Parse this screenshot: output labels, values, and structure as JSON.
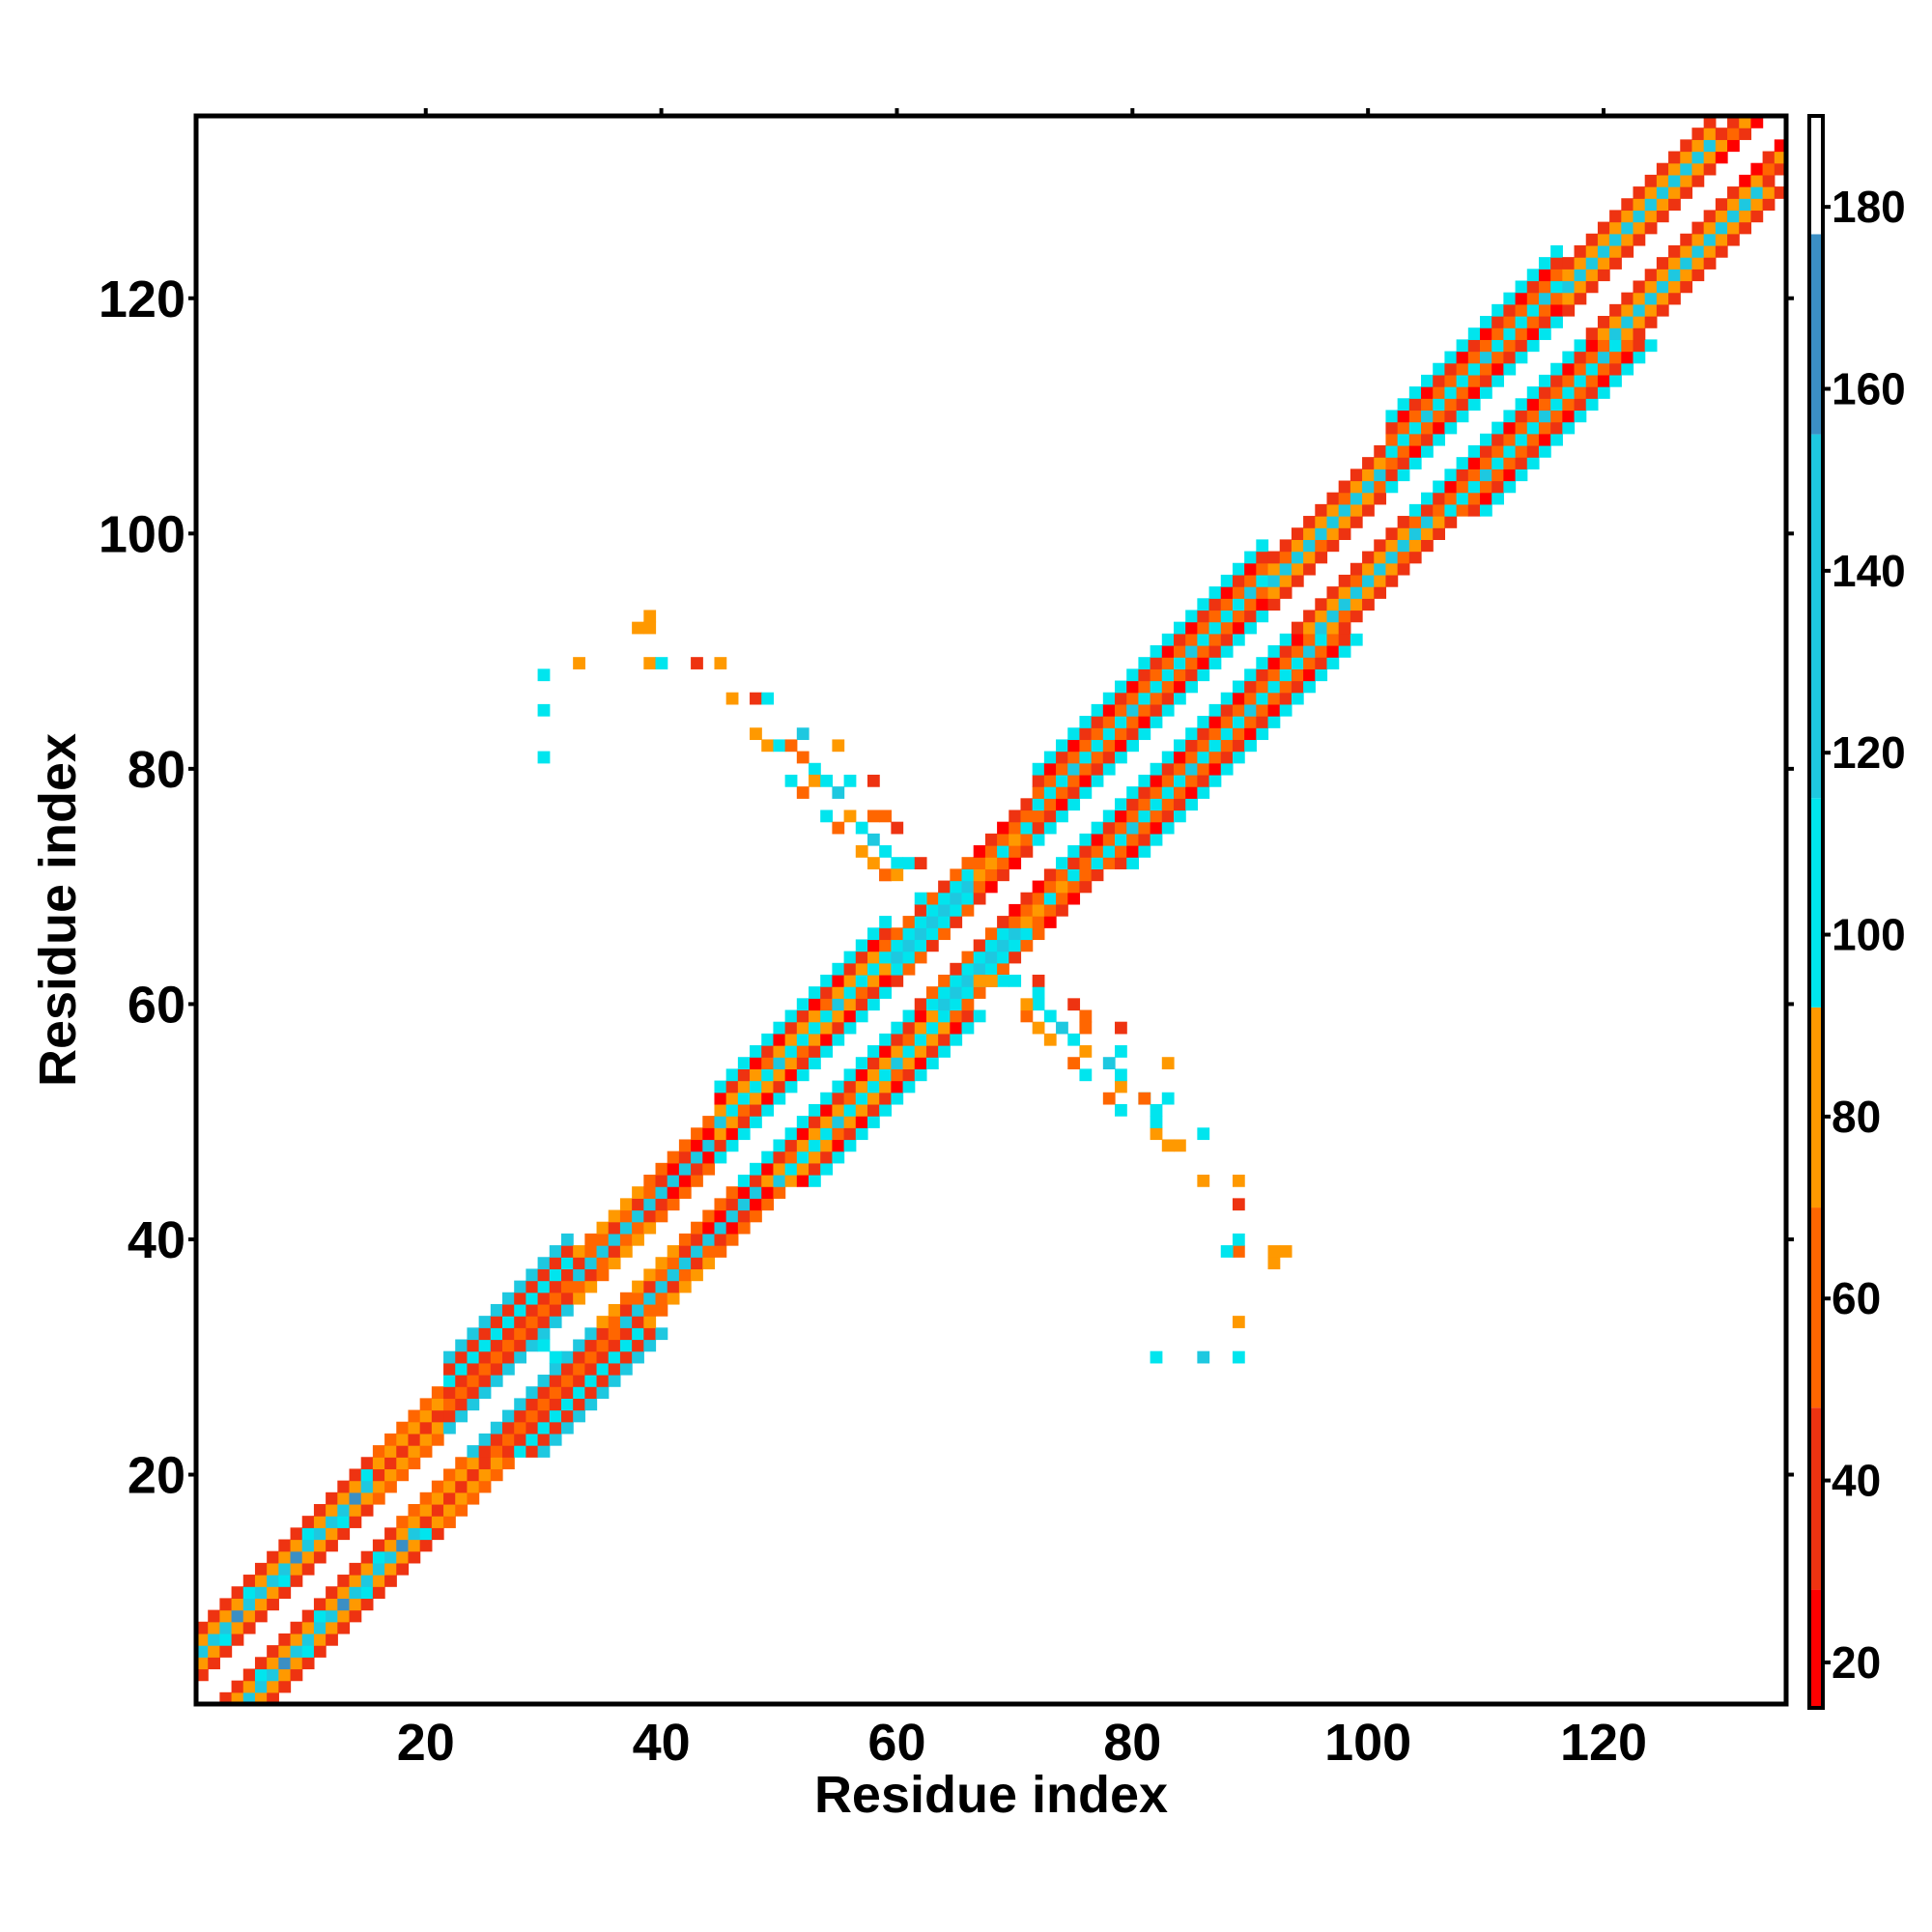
{
  "chart_data": {
    "type": "heatmap",
    "xlabel": "Residue index",
    "ylabel": "Residue index",
    "xlim": [
      1,
      135
    ],
    "ylim": [
      1,
      135
    ],
    "x_ticks": [
      "20",
      "40",
      "60",
      "80",
      "100",
      "120"
    ],
    "y_ticks": [
      "20",
      "40",
      "60",
      "80",
      "100",
      "120"
    ],
    "colorbar": {
      "range": [
        15,
        190
      ],
      "ticks": [
        "20",
        "40",
        "60",
        "80",
        "100",
        "120",
        "140",
        "160",
        "180"
      ],
      "colors": [
        {
          "from": 15,
          "to": 28,
          "color": "#ff0000"
        },
        {
          "from": 28,
          "to": 48,
          "color": "#ee3311"
        },
        {
          "from": 48,
          "to": 70,
          "color": "#ff6600"
        },
        {
          "from": 70,
          "to": 92,
          "color": "#ff9900"
        },
        {
          "from": 92,
          "to": 115,
          "color": "#00e5ee"
        },
        {
          "from": 115,
          "to": 155,
          "color": "#1ec8e0"
        },
        {
          "from": 155,
          "to": 177,
          "color": "#3b8fc4"
        },
        {
          "from": 177,
          "to": 190,
          "color": "#ffffff"
        }
      ]
    },
    "band_profiles": [
      {
        "from": 1,
        "to": 16,
        "values": [
          40,
          88,
          150,
          88,
          40
        ]
      },
      {
        "from": 16,
        "to": 22,
        "values": [
          55,
          85,
          40,
          85,
          55
        ]
      },
      {
        "from": 22,
        "to": 33,
        "values": [
          130,
          40,
          60,
          40,
          100,
          40,
          130
        ]
      },
      {
        "from": 33,
        "to": 40,
        "values": [
          75,
          50,
          130,
          50,
          75
        ]
      },
      {
        "from": 40,
        "to": 45,
        "values": [
          60,
          25,
          140,
          25,
          60
        ]
      },
      {
        "from": 45,
        "to": 60,
        "values": [
          105,
          30,
          75,
          110,
          75,
          30,
          105
        ]
      },
      {
        "from": 60,
        "to": 67,
        "values": [
          50,
          100,
          140,
          100,
          50
        ]
      },
      {
        "from": 67,
        "to": 72,
        "values": [
          30,
          60,
          90,
          60,
          30
        ]
      },
      {
        "from": 72,
        "to": 92,
        "values": [
          105,
          30,
          60,
          110,
          60,
          30,
          105
        ]
      },
      {
        "from": 92,
        "to": 102,
        "values": [
          40,
          75,
          130,
          75,
          40
        ]
      },
      {
        "from": 102,
        "to": 117,
        "values": [
          105,
          30,
          60,
          110,
          60,
          30,
          105
        ]
      },
      {
        "from": 117,
        "to": 130,
        "values": [
          40,
          80,
          130,
          80,
          40
        ]
      },
      {
        "from": 130,
        "to": 136,
        "values": [
          25,
          70,
          40
        ]
      }
    ],
    "offdiagonal_cells": [
      [
        30,
        88,
        110
      ],
      [
        30,
        85,
        110
      ],
      [
        30,
        81,
        110
      ],
      [
        33,
        89,
        80
      ],
      [
        38,
        92,
        70
      ],
      [
        39,
        93,
        70
      ],
      [
        39,
        92,
        75
      ],
      [
        39,
        89,
        70
      ],
      [
        40,
        89,
        105
      ],
      [
        43,
        89,
        30
      ],
      [
        45,
        89,
        80
      ],
      [
        46,
        86,
        85
      ],
      [
        48,
        86,
        35
      ],
      [
        49,
        86,
        110
      ],
      [
        48,
        83,
        70
      ],
      [
        49,
        82,
        70
      ],
      [
        50,
        82,
        110
      ],
      [
        51,
        82,
        60
      ],
      [
        52,
        83,
        120
      ],
      [
        52,
        81,
        60
      ],
      [
        53,
        80,
        110
      ],
      [
        55,
        82,
        85
      ],
      [
        51,
        79,
        110
      ],
      [
        52,
        78,
        60
      ],
      [
        53,
        79,
        80
      ],
      [
        54,
        79,
        110
      ],
      [
        55,
        78,
        120
      ],
      [
        56,
        79,
        110
      ],
      [
        58,
        79,
        40
      ],
      [
        54,
        76,
        110
      ],
      [
        55,
        75,
        60
      ],
      [
        56,
        76,
        80
      ],
      [
        57,
        75,
        110
      ],
      [
        58,
        76,
        60
      ],
      [
        59,
        76,
        60
      ],
      [
        60,
        75,
        40
      ],
      [
        57,
        73,
        75
      ],
      [
        58,
        74,
        120
      ],
      [
        59,
        73,
        110
      ],
      [
        58,
        72,
        75
      ],
      [
        59,
        71,
        40
      ],
      [
        60,
        72,
        110
      ],
      [
        61,
        72,
        110
      ],
      [
        62,
        72,
        40
      ],
      [
        59,
        71,
        60
      ],
      [
        60,
        71,
        70
      ],
      [
        62,
        69,
        110
      ],
      [
        31,
        30,
        110
      ],
      [
        30,
        31,
        110
      ],
      [
        86,
        30,
        130
      ],
      [
        89,
        30,
        110
      ],
      [
        82,
        30,
        110
      ],
      [
        89,
        33,
        80
      ],
      [
        92,
        38,
        75
      ],
      [
        93,
        39,
        80
      ],
      [
        92,
        39,
        70
      ],
      [
        89,
        39,
        60
      ],
      [
        89,
        40,
        105
      ],
      [
        88,
        39,
        110
      ],
      [
        89,
        43,
        30
      ],
      [
        89,
        45,
        80
      ],
      [
        86,
        45,
        80
      ],
      [
        86,
        49,
        110
      ],
      [
        83,
        48,
        70
      ],
      [
        84,
        48,
        70
      ],
      [
        82,
        49,
        70
      ],
      [
        82,
        50,
        110
      ],
      [
        82,
        51,
        110
      ],
      [
        81,
        52,
        110
      ],
      [
        83,
        52,
        110
      ],
      [
        83,
        55,
        85
      ],
      [
        81,
        52,
        60
      ],
      [
        79,
        51,
        110
      ],
      [
        78,
        52,
        60
      ],
      [
        79,
        53,
        80
      ],
      [
        79,
        54,
        110
      ],
      [
        78,
        55,
        120
      ],
      [
        79,
        56,
        110
      ],
      [
        79,
        58,
        40
      ],
      [
        76,
        54,
        110
      ],
      [
        75,
        55,
        60
      ],
      [
        76,
        56,
        80
      ],
      [
        75,
        57,
        110
      ],
      [
        76,
        58,
        60
      ],
      [
        76,
        59,
        60
      ],
      [
        75,
        60,
        40
      ],
      [
        73,
        57,
        75
      ],
      [
        74,
        58,
        120
      ],
      [
        73,
        59,
        110
      ],
      [
        72,
        58,
        75
      ],
      [
        72,
        60,
        110
      ],
      [
        72,
        61,
        110
      ],
      [
        72,
        62,
        40
      ],
      [
        71,
        59,
        60
      ],
      [
        71,
        60,
        70
      ],
      [
        69,
        62,
        110
      ],
      [
        70,
        62,
        110
      ],
      [
        68,
        62,
        75
      ],
      [
        67,
        62,
        70
      ]
    ]
  }
}
